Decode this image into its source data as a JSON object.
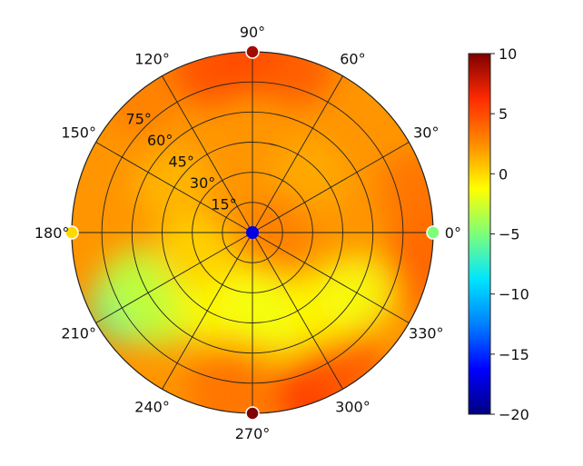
{
  "chart_data": {
    "type": "heatmap",
    "projection": "polar",
    "title": "",
    "angle_ticks": [
      {
        "deg": 0,
        "label": "0°"
      },
      {
        "deg": 30,
        "label": "30°"
      },
      {
        "deg": 60,
        "label": "60°"
      },
      {
        "deg": 90,
        "label": "90°"
      },
      {
        "deg": 120,
        "label": "120°"
      },
      {
        "deg": 150,
        "label": "150°"
      },
      {
        "deg": 180,
        "label": "180°"
      },
      {
        "deg": 210,
        "label": "210°"
      },
      {
        "deg": 240,
        "label": "240°"
      },
      {
        "deg": 270,
        "label": "270°"
      },
      {
        "deg": 300,
        "label": "300°"
      },
      {
        "deg": 330,
        "label": "330°"
      }
    ],
    "radial_ticks": [
      {
        "value": 15,
        "label": "15°"
      },
      {
        "value": 30,
        "label": "30°"
      },
      {
        "value": 45,
        "label": "45°"
      },
      {
        "value": 60,
        "label": "60°"
      },
      {
        "value": 75,
        "label": "75°"
      }
    ],
    "radial_range": [
      0,
      90
    ],
    "colorbar": {
      "range": [
        -20,
        10
      ],
      "ticks": [
        {
          "value": 10,
          "label": "10"
        },
        {
          "value": 5,
          "label": "5"
        },
        {
          "value": 0,
          "label": "0"
        },
        {
          "value": -5,
          "label": "−5"
        },
        {
          "value": -10,
          "label": "−10"
        },
        {
          "value": -15,
          "label": "−15"
        },
        {
          "value": -20,
          "label": "−20"
        }
      ],
      "colormap": "jet-like",
      "stops": [
        "#00007f",
        "#0000ff",
        "#0080ff",
        "#00e5ff",
        "#7dff7a",
        "#ffff00",
        "#ff8c00",
        "#ff2a00",
        "#7f0000"
      ]
    },
    "field_regions": [
      {
        "angle_deg": 90,
        "radius_deg": 88,
        "value": 5.5
      },
      {
        "angle_deg": 75,
        "radius_deg": 85,
        "value": 4.5
      },
      {
        "angle_deg": 105,
        "radius_deg": 85,
        "value": 5
      },
      {
        "angle_deg": 130,
        "radius_deg": 88,
        "value": 3
      },
      {
        "angle_deg": 270,
        "radius_deg": 88,
        "value": 3
      },
      {
        "angle_deg": 290,
        "radius_deg": 88,
        "value": 6
      },
      {
        "angle_deg": 305,
        "radius_deg": 80,
        "value": 4.5
      },
      {
        "angle_deg": 260,
        "radius_deg": 80,
        "value": 3.5
      },
      {
        "angle_deg": 0,
        "radius_deg": 88,
        "value": 4
      },
      {
        "angle_deg": 345,
        "radius_deg": 85,
        "value": 4
      },
      {
        "angle_deg": 15,
        "radius_deg": 85,
        "value": 3.5
      },
      {
        "angle_deg": 210,
        "radius_deg": 72,
        "value": -6
      },
      {
        "angle_deg": 205,
        "radius_deg": 62,
        "value": -3
      },
      {
        "angle_deg": 220,
        "radius_deg": 60,
        "value": -3
      },
      {
        "angle_deg": 240,
        "radius_deg": 42,
        "value": -1.5
      },
      {
        "angle_deg": 255,
        "radius_deg": 35,
        "value": -1
      },
      {
        "angle_deg": 275,
        "radius_deg": 38,
        "value": -1.5
      },
      {
        "angle_deg": 290,
        "radius_deg": 45,
        "value": -1.5
      },
      {
        "angle_deg": 315,
        "radius_deg": 52,
        "value": -1
      },
      {
        "angle_deg": 330,
        "radius_deg": 60,
        "value": -1.5
      },
      {
        "angle_deg": 200,
        "radius_deg": 30,
        "value": 0
      },
      {
        "angle_deg": 150,
        "radius_deg": 45,
        "value": 1
      },
      {
        "angle_deg": 45,
        "radius_deg": 40,
        "value": 1.5
      },
      {
        "angle_deg": 0,
        "radius_deg": 12,
        "value": 3
      }
    ],
    "markers": [
      {
        "angle_deg": 0,
        "radius_deg": 0,
        "value": -17
      },
      {
        "angle_deg": 90,
        "radius_deg": 90,
        "value": 9
      },
      {
        "angle_deg": 180,
        "radius_deg": 90,
        "value": 0
      },
      {
        "angle_deg": 270,
        "radius_deg": 90,
        "value": 10
      },
      {
        "angle_deg": 0,
        "radius_deg": 90,
        "value": -5
      }
    ]
  }
}
